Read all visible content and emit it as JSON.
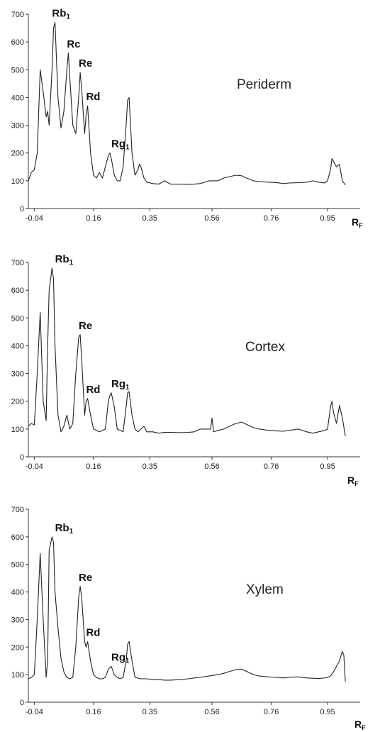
{
  "chart_data": [
    {
      "type": "line",
      "title": "Periderm",
      "xlabel": "R",
      "xlabel_sub": "F",
      "xlim": [
        -0.06,
        1.06
      ],
      "ylim": [
        0,
        700
      ],
      "x_ticks": [
        -0.04,
        0.16,
        0.35,
        0.56,
        0.76,
        0.95
      ],
      "x_tick_labels": [
        "-0.04",
        "0.16",
        "0.35",
        "0.56",
        "0.76",
        "0.95"
      ],
      "y_ticks": [
        0,
        100,
        200,
        300,
        400,
        500,
        600,
        700
      ],
      "y_tick_labels": [
        "0",
        "100",
        "200",
        "300",
        "400",
        "500",
        "600",
        "700"
      ],
      "peak_labels": [
        {
          "main": "Rb",
          "sub": "1",
          "x": 0.02,
          "y": 670
        },
        {
          "main": "Rc",
          "sub": "",
          "x": 0.07,
          "y": 560
        },
        {
          "main": "Re",
          "sub": "",
          "x": 0.11,
          "y": 490
        },
        {
          "main": "Rd",
          "sub": "",
          "x": 0.135,
          "y": 370
        },
        {
          "main": "Rg",
          "sub": "1",
          "x": 0.22,
          "y": 200
        }
      ],
      "series": [
        {
          "x": [
            -0.06,
            -0.05,
            -0.04,
            -0.03,
            -0.02,
            -0.01,
            0.0,
            0.005,
            0.01,
            0.02,
            0.025,
            0.03,
            0.04,
            0.05,
            0.06,
            0.07,
            0.075,
            0.08,
            0.09,
            0.1,
            0.11,
            0.115,
            0.12,
            0.13,
            0.135,
            0.14,
            0.15,
            0.16,
            0.17,
            0.18,
            0.19,
            0.2,
            0.21,
            0.215,
            0.22,
            0.23,
            0.24,
            0.25,
            0.26,
            0.27,
            0.275,
            0.28,
            0.29,
            0.3,
            0.31,
            0.315,
            0.32,
            0.33,
            0.34,
            0.36,
            0.38,
            0.4,
            0.42,
            0.45,
            0.48,
            0.5,
            0.52,
            0.55,
            0.58,
            0.6,
            0.62,
            0.64,
            0.66,
            0.68,
            0.7,
            0.72,
            0.75,
            0.78,
            0.8,
            0.82,
            0.85,
            0.88,
            0.9,
            0.92,
            0.94,
            0.95,
            0.96,
            0.965,
            0.97,
            0.98,
            0.99,
            1.0,
            1.01
          ],
          "y": [
            100,
            130,
            140,
            200,
            500,
            420,
            330,
            350,
            300,
            500,
            650,
            670,
            400,
            290,
            350,
            500,
            560,
            470,
            300,
            270,
            400,
            490,
            430,
            270,
            340,
            370,
            200,
            120,
            110,
            130,
            110,
            150,
            190,
            200,
            180,
            120,
            100,
            100,
            150,
            300,
            390,
            400,
            200,
            120,
            140,
            160,
            150,
            110,
            95,
            90,
            88,
            100,
            88,
            88,
            87,
            88,
            90,
            100,
            100,
            110,
            115,
            120,
            118,
            108,
            100,
            97,
            95,
            93,
            90,
            92,
            93,
            95,
            100,
            95,
            92,
            100,
            140,
            180,
            170,
            150,
            160,
            100,
            85
          ]
        }
      ]
    },
    {
      "type": "line",
      "title": "Cortex",
      "xlabel": "R",
      "xlabel_sub": "F",
      "xlim": [
        -0.06,
        1.06
      ],
      "ylim": [
        0,
        700
      ],
      "x_ticks": [
        -0.04,
        0.16,
        0.35,
        0.56,
        0.76,
        0.95
      ],
      "x_tick_labels": [
        "-0.04",
        "0.16",
        "0.35",
        "0.56",
        "0.76",
        "0.95"
      ],
      "y_ticks": [
        0,
        100,
        200,
        300,
        400,
        500,
        600,
        700
      ],
      "y_tick_labels": [
        "0",
        "100",
        "200",
        "300",
        "400",
        "500",
        "600",
        "700"
      ],
      "peak_labels": [
        {
          "main": "Rb",
          "sub": "1",
          "x": 0.03,
          "y": 680
        },
        {
          "main": "Re",
          "sub": "",
          "x": 0.11,
          "y": 440
        },
        {
          "main": "Rd",
          "sub": "",
          "x": 0.135,
          "y": 210
        },
        {
          "main": "Rg",
          "sub": "1",
          "x": 0.22,
          "y": 230
        }
      ],
      "series": [
        {
          "x": [
            -0.06,
            -0.05,
            -0.04,
            -0.03,
            -0.02,
            -0.01,
            0.0,
            0.005,
            0.01,
            0.02,
            0.025,
            0.03,
            0.04,
            0.05,
            0.06,
            0.07,
            0.08,
            0.09,
            0.1,
            0.11,
            0.115,
            0.12,
            0.13,
            0.135,
            0.14,
            0.15,
            0.16,
            0.17,
            0.18,
            0.19,
            0.2,
            0.21,
            0.215,
            0.22,
            0.23,
            0.24,
            0.25,
            0.26,
            0.27,
            0.275,
            0.28,
            0.29,
            0.3,
            0.31,
            0.32,
            0.33,
            0.34,
            0.36,
            0.38,
            0.4,
            0.42,
            0.45,
            0.48,
            0.5,
            0.52,
            0.55,
            0.555,
            0.56,
            0.565,
            0.58,
            0.6,
            0.62,
            0.64,
            0.66,
            0.68,
            0.7,
            0.72,
            0.75,
            0.78,
            0.8,
            0.82,
            0.85,
            0.88,
            0.9,
            0.92,
            0.94,
            0.95,
            0.96,
            0.965,
            0.97,
            0.98,
            0.99,
            1.0,
            1.01
          ],
          "y": [
            110,
            120,
            115,
            300,
            520,
            200,
            130,
            400,
            600,
            680,
            640,
            400,
            150,
            90,
            110,
            150,
            100,
            120,
            300,
            430,
            440,
            350,
            150,
            200,
            210,
            150,
            100,
            95,
            90,
            95,
            100,
            200,
            220,
            230,
            180,
            100,
            95,
            90,
            180,
            230,
            235,
            150,
            100,
            90,
            100,
            110,
            90,
            90,
            85,
            88,
            88,
            87,
            88,
            90,
            100,
            100,
            100,
            140,
            90,
            95,
            100,
            110,
            120,
            125,
            115,
            105,
            100,
            95,
            93,
            92,
            95,
            100,
            90,
            85,
            90,
            95,
            100,
            180,
            200,
            160,
            120,
            185,
            140,
            75
          ]
        }
      ]
    },
    {
      "type": "line",
      "title": "Xylem",
      "xlabel": "R",
      "xlabel_sub": "F",
      "xlim": [
        -0.06,
        1.06
      ],
      "ylim": [
        0,
        700
      ],
      "x_ticks": [
        -0.04,
        0.16,
        0.35,
        0.56,
        0.76,
        0.95
      ],
      "x_tick_labels": [
        "-0.04",
        "0.16",
        "0.35",
        "0.56",
        "0.76",
        "0.95"
      ],
      "y_ticks": [
        0,
        100,
        200,
        300,
        400,
        500,
        600,
        700
      ],
      "y_tick_labels": [
        "0",
        "100",
        "200",
        "300",
        "400",
        "500",
        "600",
        "700"
      ],
      "peak_labels": [
        {
          "main": "Rb",
          "sub": "1",
          "x": 0.03,
          "y": 600
        },
        {
          "main": "Re",
          "sub": "",
          "x": 0.11,
          "y": 420
        },
        {
          "main": "Rd",
          "sub": "",
          "x": 0.135,
          "y": 220
        },
        {
          "main": "Rg",
          "sub": "1",
          "x": 0.22,
          "y": 130
        }
      ],
      "series": [
        {
          "x": [
            -0.06,
            -0.05,
            -0.04,
            -0.03,
            -0.02,
            -0.01,
            0.0,
            0.005,
            0.01,
            0.02,
            0.025,
            0.03,
            0.04,
            0.05,
            0.06,
            0.07,
            0.08,
            0.09,
            0.1,
            0.11,
            0.115,
            0.12,
            0.13,
            0.135,
            0.14,
            0.15,
            0.16,
            0.17,
            0.18,
            0.19,
            0.2,
            0.21,
            0.215,
            0.22,
            0.23,
            0.24,
            0.25,
            0.26,
            0.27,
            0.275,
            0.28,
            0.29,
            0.3,
            0.32,
            0.34,
            0.36,
            0.38,
            0.4,
            0.42,
            0.45,
            0.48,
            0.5,
            0.52,
            0.55,
            0.58,
            0.6,
            0.62,
            0.64,
            0.66,
            0.68,
            0.7,
            0.72,
            0.75,
            0.78,
            0.8,
            0.82,
            0.85,
            0.88,
            0.9,
            0.92,
            0.94,
            0.95,
            0.96,
            0.97,
            0.98,
            0.99,
            1.0,
            1.005,
            1.01
          ],
          "y": [
            85,
            90,
            100,
            300,
            540,
            300,
            90,
            150,
            550,
            600,
            580,
            400,
            270,
            160,
            110,
            90,
            85,
            90,
            200,
            380,
            420,
            380,
            220,
            200,
            220,
            150,
            100,
            90,
            85,
            85,
            90,
            120,
            125,
            130,
            100,
            90,
            85,
            90,
            150,
            210,
            220,
            150,
            90,
            85,
            85,
            82,
            82,
            80,
            80,
            82,
            85,
            88,
            90,
            95,
            100,
            105,
            112,
            118,
            120,
            110,
            100,
            95,
            92,
            90,
            88,
            90,
            92,
            88,
            87,
            86,
            88,
            90,
            95,
            110,
            130,
            150,
            185,
            170,
            75
          ]
        }
      ]
    }
  ]
}
